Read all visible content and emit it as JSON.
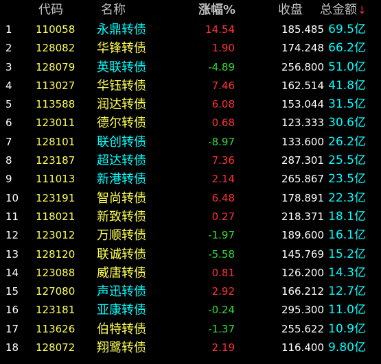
{
  "header": {
    "code": "代码",
    "name": "名称",
    "change": "涨幅%",
    "price": "收盘",
    "amount": "总金额",
    "sort_arrow": "↓"
  },
  "colors": {
    "up": "#ff3333",
    "down": "#33dd33",
    "flat": "#ffffff",
    "name_default": "#ffff55",
    "name_highlight": "#00ffff",
    "code": "#ffff55",
    "amount": "#00ffff"
  },
  "rows": [
    {
      "idx": "1",
      "code": "110058",
      "name": "永鼎转债",
      "change": "14.54",
      "price": "185.485",
      "amount": "69.5亿",
      "name_hl": true
    },
    {
      "idx": "2",
      "code": "128082",
      "name": "华锋转债",
      "change": "1.90",
      "price": "174.248",
      "amount": "66.2亿",
      "name_hl": false
    },
    {
      "idx": "3",
      "code": "128079",
      "name": "英联转债",
      "change": "-4.89",
      "price": "256.800",
      "amount": "51.0亿",
      "name_hl": true
    },
    {
      "idx": "4",
      "code": "113027",
      "name": "华钰转债",
      "change": "7.46",
      "price": "162.514",
      "amount": "41.8亿",
      "name_hl": false
    },
    {
      "idx": "5",
      "code": "113588",
      "name": "润达转债",
      "change": "6.08",
      "price": "153.044",
      "amount": "31.5亿",
      "name_hl": false
    },
    {
      "idx": "6",
      "code": "123011",
      "name": "德尔转债",
      "change": "0.68",
      "price": "123.333",
      "amount": "30.6亿",
      "name_hl": false
    },
    {
      "idx": "7",
      "code": "128101",
      "name": "联创转债",
      "change": "-8.97",
      "price": "133.600",
      "amount": "26.2亿",
      "name_hl": true
    },
    {
      "idx": "8",
      "code": "123187",
      "name": "超达转债",
      "change": "7.36",
      "price": "287.301",
      "amount": "25.5亿",
      "name_hl": true
    },
    {
      "idx": "9",
      "code": "111013",
      "name": "新港转债",
      "change": "2.14",
      "price": "265.867",
      "amount": "23.5亿",
      "name_hl": true
    },
    {
      "idx": "10",
      "code": "123191",
      "name": "智尚转债",
      "change": "6.48",
      "price": "178.891",
      "amount": "22.3亿",
      "name_hl": false
    },
    {
      "idx": "11",
      "code": "118021",
      "name": "新致转债",
      "change": "0.27",
      "price": "218.371",
      "amount": "18.1亿",
      "name_hl": false
    },
    {
      "idx": "12",
      "code": "123012",
      "name": "万顺转债",
      "change": "-1.97",
      "price": "189.600",
      "amount": "16.1亿",
      "name_hl": false
    },
    {
      "idx": "13",
      "code": "128120",
      "name": "联诚转债",
      "change": "-5.58",
      "price": "145.769",
      "amount": "15.2亿",
      "name_hl": false
    },
    {
      "idx": "14",
      "code": "123088",
      "name": "威唐转债",
      "change": "0.81",
      "price": "126.200",
      "amount": "14.3亿",
      "name_hl": false
    },
    {
      "idx": "15",
      "code": "127080",
      "name": "声迅转债",
      "change": "2.92",
      "price": "166.212",
      "amount": "12.7亿",
      "name_hl": true
    },
    {
      "idx": "16",
      "code": "123181",
      "name": "亚康转债",
      "change": "-0.24",
      "price": "295.300",
      "amount": "11.0亿",
      "name_hl": true
    },
    {
      "idx": "17",
      "code": "113626",
      "name": "伯特转债",
      "change": "-1.37",
      "price": "255.622",
      "amount": "10.9亿",
      "name_hl": false
    },
    {
      "idx": "18",
      "code": "128072",
      "name": "翔鹭转债",
      "change": "2.19",
      "price": "116.400",
      "amount": "9.80亿",
      "name_hl": false
    }
  ]
}
